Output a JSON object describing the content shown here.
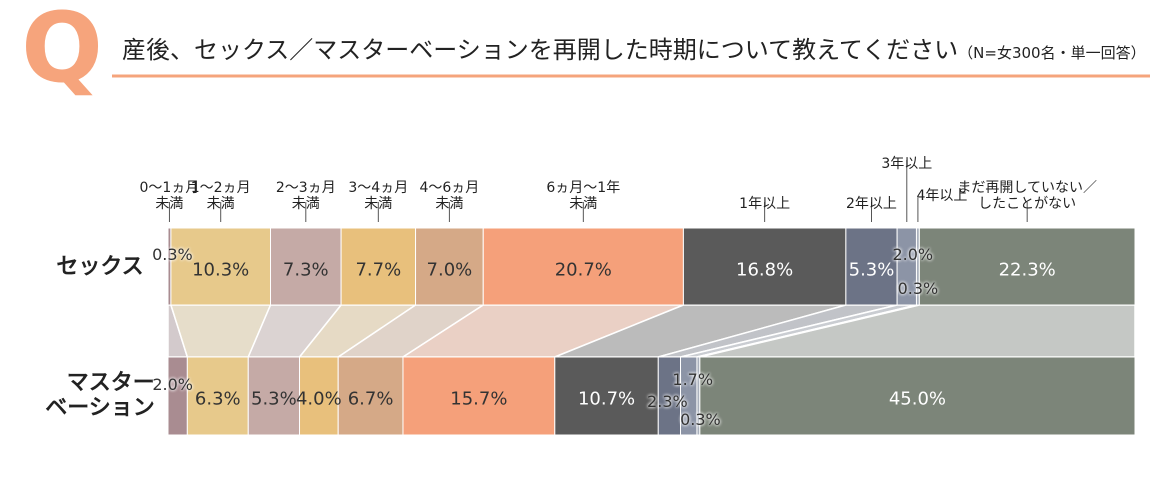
{
  "chart_data": {
    "type": "bar",
    "orientation": "horizontal",
    "stacked": true,
    "q_icon": "Q",
    "title": "産後、セックス／マスターベーションを再開した時期について教えてください",
    "subtitle": "（N=女300名・単一回答）",
    "xlim": [
      0,
      100
    ],
    "categories": [
      "セックス",
      "マスター\nベーション"
    ],
    "series": [
      {
        "name": "0〜1ヵ月\n未満",
        "color": "#a98c91",
        "values": [
          0.3,
          2.0
        ],
        "value_labels": [
          "0.3%",
          "2.0%"
        ]
      },
      {
        "name": "1〜2ヵ月\n未満",
        "color": "#e7c98b",
        "values": [
          10.3,
          6.3
        ],
        "value_labels": [
          "10.3%",
          "6.3%"
        ]
      },
      {
        "name": "2〜3ヵ月\n未満",
        "color": "#c5aaa6",
        "values": [
          7.3,
          5.3
        ],
        "value_labels": [
          "7.3%",
          "5.3%"
        ]
      },
      {
        "name": "3〜4ヵ月\n未満",
        "color": "#e8c07c",
        "values": [
          7.7,
          4.0
        ],
        "value_labels": [
          "7.7%",
          "4.0%"
        ]
      },
      {
        "name": "4〜6ヵ月\n未満",
        "color": "#d5a987",
        "values": [
          7.0,
          6.7
        ],
        "value_labels": [
          "7.0%",
          "6.7%"
        ]
      },
      {
        "name": "6ヵ月〜1年\n未満",
        "color": "#f5a07a",
        "values": [
          20.7,
          15.7
        ],
        "value_labels": [
          "20.7%",
          "15.7%"
        ]
      },
      {
        "name": "1年以上",
        "color": "#5a5a5a",
        "values": [
          16.8,
          10.7
        ],
        "value_labels": [
          "16.8%",
          "10.7%"
        ]
      },
      {
        "name": "2年以上",
        "color": "#6c7386",
        "values": [
          5.3,
          2.3
        ],
        "value_labels": [
          "5.3%",
          "2.3%"
        ]
      },
      {
        "name": "3年以上",
        "color": "#8c94a6",
        "values": [
          2.0,
          1.7
        ],
        "value_labels": [
          "2.0%",
          "1.7%"
        ]
      },
      {
        "name": "4年以上",
        "color": "#aab1bd",
        "values": [
          0.3,
          0.3
        ],
        "value_labels": [
          "0.3%",
          "0.3%"
        ]
      },
      {
        "name": "まだ再開していない／\nしたことがない",
        "color": "#7c8579",
        "values": [
          22.3,
          45.0
        ],
        "value_labels": [
          "22.3%",
          "45.0%"
        ]
      }
    ]
  }
}
